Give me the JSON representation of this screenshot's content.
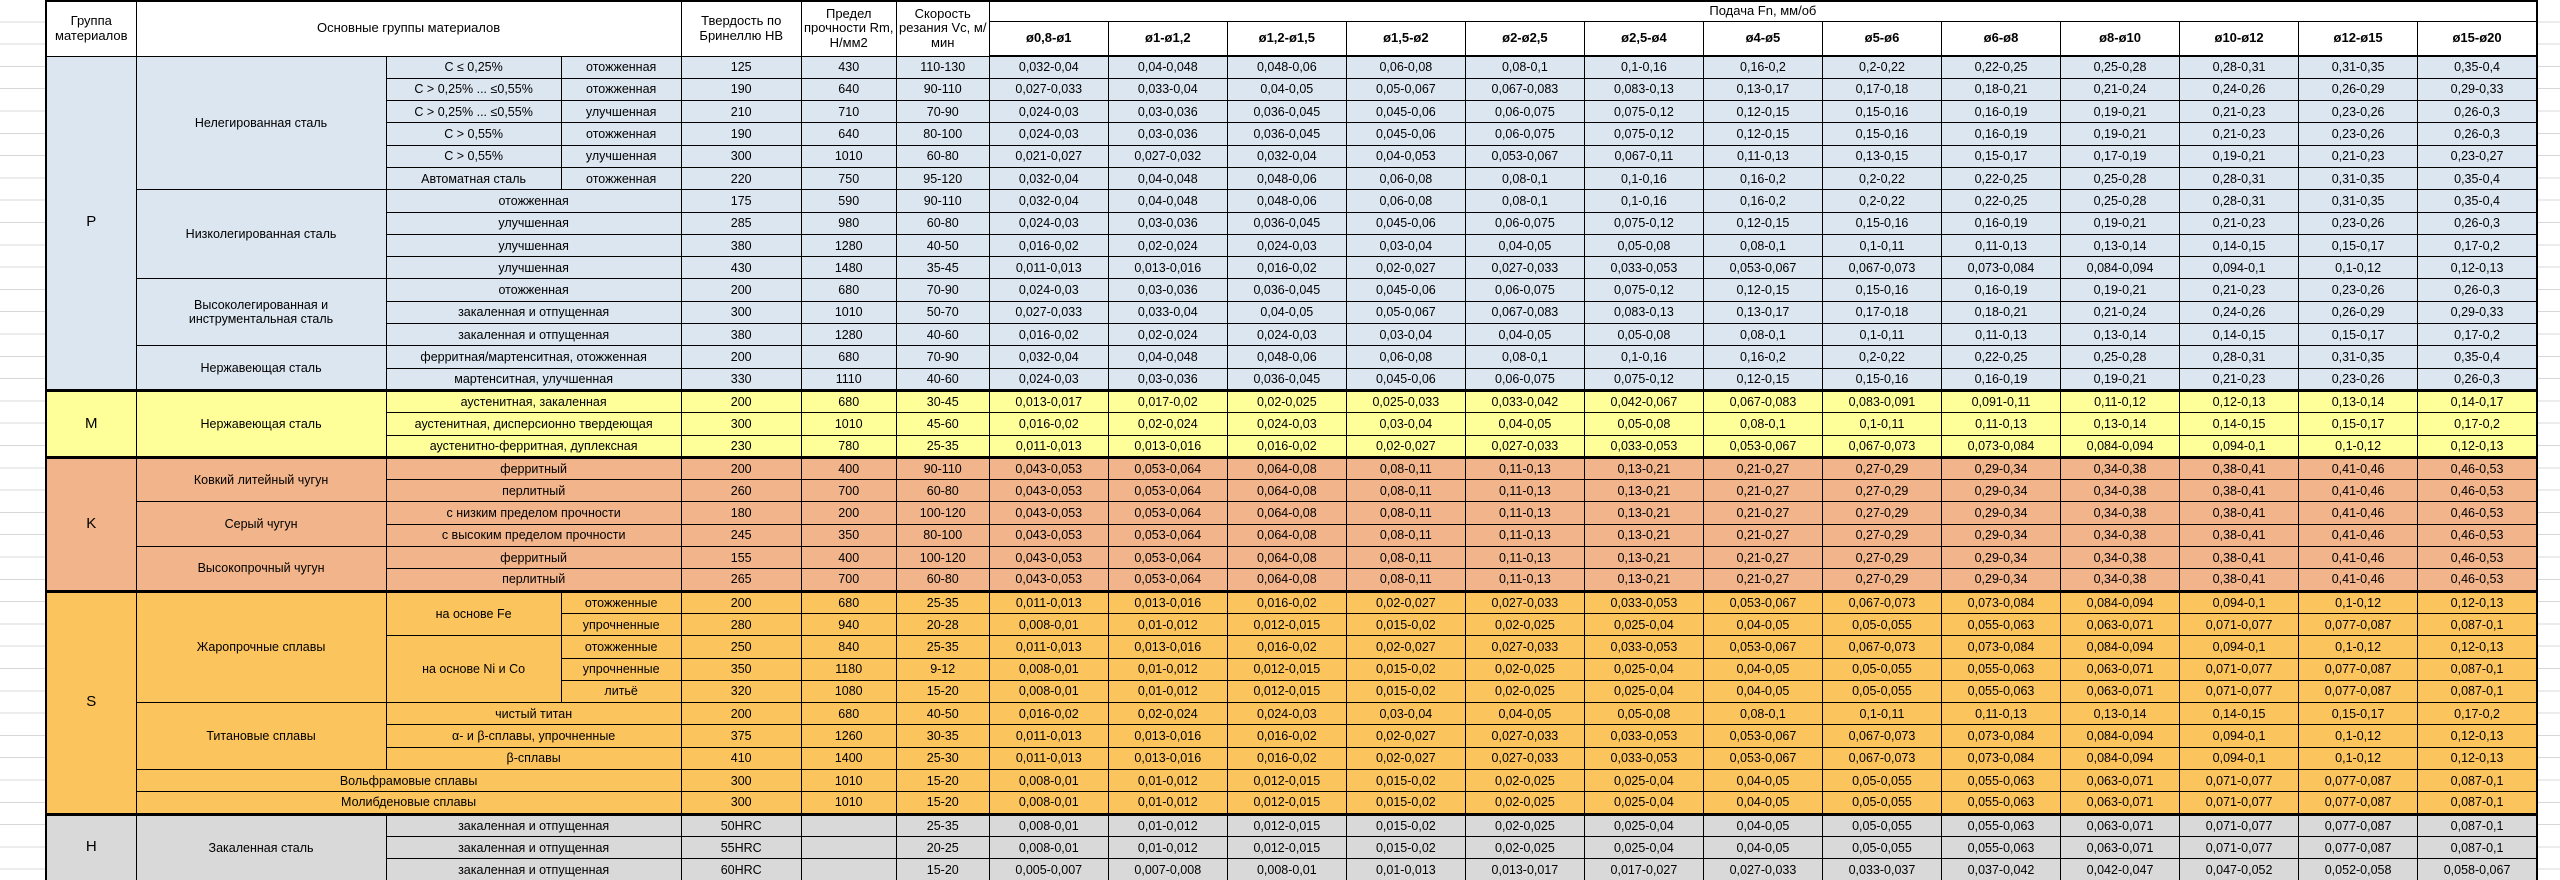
{
  "table": {
    "header": {
      "group": "Группа материалов",
      "main": "Основные группы материалов",
      "hardness": "Твердость по Бринеллю HB",
      "strength": "Предел прочности Rm, Н/мм2",
      "speed": "Скорость резания Vc, м/мин",
      "feed": "Подача Fn, мм/об",
      "diameters": [
        "ø0,8-ø1",
        "ø1-ø1,2",
        "ø1,2-ø1,5",
        "ø1,5-ø2",
        "ø2-ø2,5",
        "ø2,5-ø4",
        "ø4-ø5",
        "ø5-ø6",
        "ø6-ø8",
        "ø8-ø10",
        "ø10-ø12",
        "ø12-ø15",
        "ø15-ø20"
      ]
    },
    "colors": {
      "P": "#dce6f1",
      "M": "#ffff99",
      "K": "#f2b48a",
      "S": "#fcc45c",
      "H": "#d9d9d9",
      "border": "#000000",
      "gridline": "#d8d8d8"
    },
    "feed_patterns": {
      "A": [
        "0,032-0,04",
        "0,04-0,048",
        "0,048-0,06",
        "0,06-0,08",
        "0,08-0,1",
        "0,1-0,16",
        "0,16-0,2",
        "0,2-0,22",
        "0,22-0,25",
        "0,25-0,28",
        "0,28-0,31",
        "0,31-0,35",
        "0,35-0,4"
      ],
      "B": [
        "0,027-0,033",
        "0,033-0,04",
        "0,04-0,05",
        "0,05-0,067",
        "0,067-0,083",
        "0,083-0,13",
        "0,13-0,17",
        "0,17-0,18",
        "0,18-0,21",
        "0,21-0,24",
        "0,24-0,26",
        "0,26-0,29",
        "0,29-0,33"
      ],
      "C": [
        "0,024-0,03",
        "0,03-0,036",
        "0,036-0,045",
        "0,045-0,06",
        "0,06-0,075",
        "0,075-0,12",
        "0,12-0,15",
        "0,15-0,16",
        "0,16-0,19",
        "0,19-0,21",
        "0,21-0,23",
        "0,23-0,26",
        "0,26-0,3"
      ],
      "D": [
        "0,021-0,027",
        "0,027-0,032",
        "0,032-0,04",
        "0,04-0,053",
        "0,053-0,067",
        "0,067-0,11",
        "0,11-0,13",
        "0,13-0,15",
        "0,15-0,17",
        "0,17-0,19",
        "0,19-0,21",
        "0,21-0,23",
        "0,23-0,27"
      ],
      "E": [
        "0,016-0,02",
        "0,02-0,024",
        "0,024-0,03",
        "0,03-0,04",
        "0,04-0,05",
        "0,05-0,08",
        "0,08-0,1",
        "0,1-0,11",
        "0,11-0,13",
        "0,13-0,14",
        "0,14-0,15",
        "0,15-0,17",
        "0,17-0,2"
      ],
      "F": [
        "0,011-0,013",
        "0,013-0,016",
        "0,016-0,02",
        "0,02-0,027",
        "0,027-0,033",
        "0,033-0,053",
        "0,053-0,067",
        "0,067-0,073",
        "0,073-0,084",
        "0,084-0,094",
        "0,094-0,1",
        "0,1-0,12",
        "0,12-0,13"
      ],
      "G": [
        "0,013-0,017",
        "0,017-0,02",
        "0,02-0,025",
        "0,025-0,033",
        "0,033-0,042",
        "0,042-0,067",
        "0,067-0,083",
        "0,083-0,091",
        "0,091-0,11",
        "0,11-0,12",
        "0,12-0,13",
        "0,13-0,14",
        "0,14-0,17"
      ],
      "H": [
        "0,043-0,053",
        "0,053-0,064",
        "0,064-0,08",
        "0,08-0,11",
        "0,11-0,13",
        "0,13-0,21",
        "0,21-0,27",
        "0,27-0,29",
        "0,29-0,34",
        "0,34-0,38",
        "0,38-0,41",
        "0,41-0,46",
        "0,46-0,53"
      ],
      "I": [
        "0,008-0,01",
        "0,01-0,012",
        "0,012-0,015",
        "0,015-0,02",
        "0,02-0,025",
        "0,025-0,04",
        "0,04-0,05",
        "0,05-0,055",
        "0,055-0,063",
        "0,063-0,071",
        "0,071-0,077",
        "0,077-0,087",
        "0,087-0,1"
      ],
      "J": [
        "0,005-0,007",
        "0,007-0,008",
        "0,008-0,01",
        "0,01-0,013",
        "0,013-0,017",
        "0,017-0,027",
        "0,027-0,033",
        "0,033-0,037",
        "0,037-0,042",
        "0,042-0,047",
        "0,047-0,052",
        "0,052-0,058",
        "0,058-0,067"
      ]
    },
    "rows": [
      {
        "g": "P",
        "left": [
          {
            "t": "P",
            "k": "group",
            "rs": 15
          },
          {
            "t": "Нелегированная сталь",
            "k": "family",
            "rs": 6
          },
          {
            "t": "C ≤ 0,25%",
            "k": "subtype"
          },
          {
            "t": "отожженная",
            "k": "condition"
          }
        ],
        "hb": "125",
        "rm": "430",
        "vc": "110-130",
        "fp": "A"
      },
      {
        "g": "P",
        "left": [
          {
            "t": "C > 0,25% ... ≤0,55%",
            "k": "subtype"
          },
          {
            "t": "отожженная",
            "k": "condition"
          }
        ],
        "hb": "190",
        "rm": "640",
        "vc": "90-110",
        "fp": "B"
      },
      {
        "g": "P",
        "left": [
          {
            "t": "C > 0,25% ... ≤0,55%",
            "k": "subtype"
          },
          {
            "t": "улучшенная",
            "k": "condition"
          }
        ],
        "hb": "210",
        "rm": "710",
        "vc": "70-90",
        "fp": "C"
      },
      {
        "g": "P",
        "left": [
          {
            "t": "C > 0,55%",
            "k": "subtype"
          },
          {
            "t": "отожженная",
            "k": "condition"
          }
        ],
        "hb": "190",
        "rm": "640",
        "vc": "80-100",
        "fp": "C"
      },
      {
        "g": "P",
        "left": [
          {
            "t": "C > 0,55%",
            "k": "subtype"
          },
          {
            "t": "улучшенная",
            "k": "condition"
          }
        ],
        "hb": "300",
        "rm": "1010",
        "vc": "60-80",
        "fp": "D"
      },
      {
        "g": "P",
        "left": [
          {
            "t": "Автоматная сталь",
            "k": "subtype"
          },
          {
            "t": "отожженная",
            "k": "condition"
          }
        ],
        "hb": "220",
        "rm": "750",
        "vc": "95-120",
        "fp": "A"
      },
      {
        "g": "P",
        "left": [
          {
            "t": "Низколегированная сталь",
            "k": "family",
            "rs": 4
          },
          {
            "t": "отожженная",
            "k": "subtype",
            "cs": 2
          }
        ],
        "hb": "175",
        "rm": "590",
        "vc": "90-110",
        "fp": "A"
      },
      {
        "g": "P",
        "left": [
          {
            "t": "улучшенная",
            "k": "subtype",
            "cs": 2
          }
        ],
        "hb": "285",
        "rm": "980",
        "vc": "60-80",
        "fp": "C"
      },
      {
        "g": "P",
        "left": [
          {
            "t": "улучшенная",
            "k": "subtype",
            "cs": 2
          }
        ],
        "hb": "380",
        "rm": "1280",
        "vc": "40-50",
        "fp": "E"
      },
      {
        "g": "P",
        "left": [
          {
            "t": "улучшенная",
            "k": "subtype",
            "cs": 2
          }
        ],
        "hb": "430",
        "rm": "1480",
        "vc": "35-45",
        "fp": "F"
      },
      {
        "g": "P",
        "left": [
          {
            "t": "Высоколегированная и инструментальная сталь",
            "k": "family",
            "rs": 3
          },
          {
            "t": "отожженная",
            "k": "subtype",
            "cs": 2
          }
        ],
        "hb": "200",
        "rm": "680",
        "vc": "70-90",
        "fp": "C"
      },
      {
        "g": "P",
        "left": [
          {
            "t": "закаленная и отпущенная",
            "k": "subtype",
            "cs": 2
          }
        ],
        "hb": "300",
        "rm": "1010",
        "vc": "50-70",
        "fp": "B"
      },
      {
        "g": "P",
        "left": [
          {
            "t": "закаленная и отпущенная",
            "k": "subtype",
            "cs": 2
          }
        ],
        "hb": "380",
        "rm": "1280",
        "vc": "40-60",
        "fp": "E"
      },
      {
        "g": "P",
        "left": [
          {
            "t": "Нержавеющая сталь",
            "k": "family",
            "rs": 2
          },
          {
            "t": "ферритная/мартенситная, отожженная",
            "k": "subtype",
            "cs": 2
          }
        ],
        "hb": "200",
        "rm": "680",
        "vc": "70-90",
        "fp": "A"
      },
      {
        "g": "P",
        "left": [
          {
            "t": "мартенситная, улучшенная",
            "k": "subtype",
            "cs": 2
          }
        ],
        "hb": "330",
        "rm": "1110",
        "vc": "40-60",
        "fp": "C"
      },
      {
        "g": "M",
        "gs": true,
        "left": [
          {
            "t": "M",
            "k": "group",
            "rs": 3
          },
          {
            "t": "Нержавеющая сталь",
            "k": "family",
            "rs": 3
          },
          {
            "t": "аустенитная, закаленная",
            "k": "subtype",
            "cs": 2
          }
        ],
        "hb": "200",
        "rm": "680",
        "vc": "30-45",
        "fp": "G"
      },
      {
        "g": "M",
        "left": [
          {
            "t": "аустенитная, дисперсионно твердеющая",
            "k": "subtype",
            "cs": 2
          }
        ],
        "hb": "300",
        "rm": "1010",
        "vc": "45-60",
        "fp": "E"
      },
      {
        "g": "M",
        "left": [
          {
            "t": "аустенитно-ферритная, дуплексная",
            "k": "subtype",
            "cs": 2
          }
        ],
        "hb": "230",
        "rm": "780",
        "vc": "25-35",
        "fp": "F"
      },
      {
        "g": "K",
        "gs": true,
        "left": [
          {
            "t": "K",
            "k": "group",
            "rs": 6
          },
          {
            "t": "Ковкий литейный чугун",
            "k": "family",
            "rs": 2
          },
          {
            "t": "ферритный",
            "k": "subtype",
            "cs": 2
          }
        ],
        "hb": "200",
        "rm": "400",
        "vc": "90-110",
        "fp": "H"
      },
      {
        "g": "K",
        "left": [
          {
            "t": "перлитный",
            "k": "subtype",
            "cs": 2
          }
        ],
        "hb": "260",
        "rm": "700",
        "vc": "60-80",
        "fp": "H"
      },
      {
        "g": "K",
        "left": [
          {
            "t": "Серый чугун",
            "k": "family",
            "rs": 2
          },
          {
            "t": "с низким пределом прочности",
            "k": "subtype",
            "cs": 2
          }
        ],
        "hb": "180",
        "rm": "200",
        "vc": "100-120",
        "fp": "H"
      },
      {
        "g": "K",
        "left": [
          {
            "t": "с высоким пределом прочности",
            "k": "subtype",
            "cs": 2
          }
        ],
        "hb": "245",
        "rm": "350",
        "vc": "80-100",
        "fp": "H"
      },
      {
        "g": "K",
        "left": [
          {
            "t": "Высокопрочный чугун",
            "k": "family",
            "rs": 2
          },
          {
            "t": "ферритный",
            "k": "subtype",
            "cs": 2
          }
        ],
        "hb": "155",
        "rm": "400",
        "vc": "100-120",
        "fp": "H"
      },
      {
        "g": "K",
        "left": [
          {
            "t": "перлитный",
            "k": "subtype",
            "cs": 2
          }
        ],
        "hb": "265",
        "rm": "700",
        "vc": "60-80",
        "fp": "H"
      },
      {
        "g": "S",
        "gs": true,
        "left": [
          {
            "t": "S",
            "k": "group",
            "rs": 10
          },
          {
            "t": "Жаропрочные сплавы",
            "k": "family",
            "rs": 5
          },
          {
            "t": "на основе Fe",
            "k": "subtype",
            "rs": 2
          },
          {
            "t": "отожженные",
            "k": "condition"
          }
        ],
        "hb": "200",
        "rm": "680",
        "vc": "25-35",
        "fp": "F"
      },
      {
        "g": "S",
        "left": [
          {
            "t": "упрочненные",
            "k": "condition"
          }
        ],
        "hb": "280",
        "rm": "940",
        "vc": "20-28",
        "fp": "I"
      },
      {
        "g": "S",
        "left": [
          {
            "t": "на основе Ni и Co",
            "k": "subtype",
            "rs": 3
          },
          {
            "t": "отожженные",
            "k": "condition"
          }
        ],
        "hb": "250",
        "rm": "840",
        "vc": "25-35",
        "fp": "F"
      },
      {
        "g": "S",
        "left": [
          {
            "t": "упрочненные",
            "k": "condition"
          }
        ],
        "hb": "350",
        "rm": "1180",
        "vc": "9-12",
        "fp": "I"
      },
      {
        "g": "S",
        "left": [
          {
            "t": "литьё",
            "k": "condition"
          }
        ],
        "hb": "320",
        "rm": "1080",
        "vc": "15-20",
        "fp": "I"
      },
      {
        "g": "S",
        "left": [
          {
            "t": "Титановые сплавы",
            "k": "family",
            "rs": 3
          },
          {
            "t": "чистый титан",
            "k": "subtype",
            "cs": 2
          }
        ],
        "hb": "200",
        "rm": "680",
        "vc": "40-50",
        "fp": "E"
      },
      {
        "g": "S",
        "left": [
          {
            "t": "α- и β-сплавы, упрочненные",
            "k": "subtype",
            "cs": 2
          }
        ],
        "hb": "375",
        "rm": "1260",
        "vc": "30-35",
        "fp": "F"
      },
      {
        "g": "S",
        "left": [
          {
            "t": "β-сплавы",
            "k": "subtype",
            "cs": 2
          }
        ],
        "hb": "410",
        "rm": "1400",
        "vc": "25-30",
        "fp": "F"
      },
      {
        "g": "S",
        "left": [
          {
            "t": "Вольфрамовые сплавы",
            "k": "family",
            "cs": 3
          }
        ],
        "hb": "300",
        "rm": "1010",
        "vc": "15-20",
        "fp": "I"
      },
      {
        "g": "S",
        "left": [
          {
            "t": "Молибденовые сплавы",
            "k": "family",
            "cs": 3
          }
        ],
        "hb": "300",
        "rm": "1010",
        "vc": "15-20",
        "fp": "I"
      },
      {
        "g": "H",
        "gs": true,
        "left": [
          {
            "t": "H",
            "k": "group",
            "rs": 3
          },
          {
            "t": "Закаленная сталь",
            "k": "family",
            "rs": 3
          },
          {
            "t": "закаленная и отпущенная",
            "k": "subtype",
            "cs": 2
          }
        ],
        "hb": "50HRC",
        "rm": "",
        "vc": "25-35",
        "fp": "I"
      },
      {
        "g": "H",
        "left": [
          {
            "t": "закаленная и отпущенная",
            "k": "subtype",
            "cs": 2
          }
        ],
        "hb": "55HRC",
        "rm": "",
        "vc": "20-25",
        "fp": "I"
      },
      {
        "g": "H",
        "left": [
          {
            "t": "закаленная и отпущенная",
            "k": "subtype",
            "cs": 2
          }
        ],
        "hb": "60HRC",
        "rm": "",
        "vc": "15-20",
        "fp": "J"
      }
    ]
  }
}
